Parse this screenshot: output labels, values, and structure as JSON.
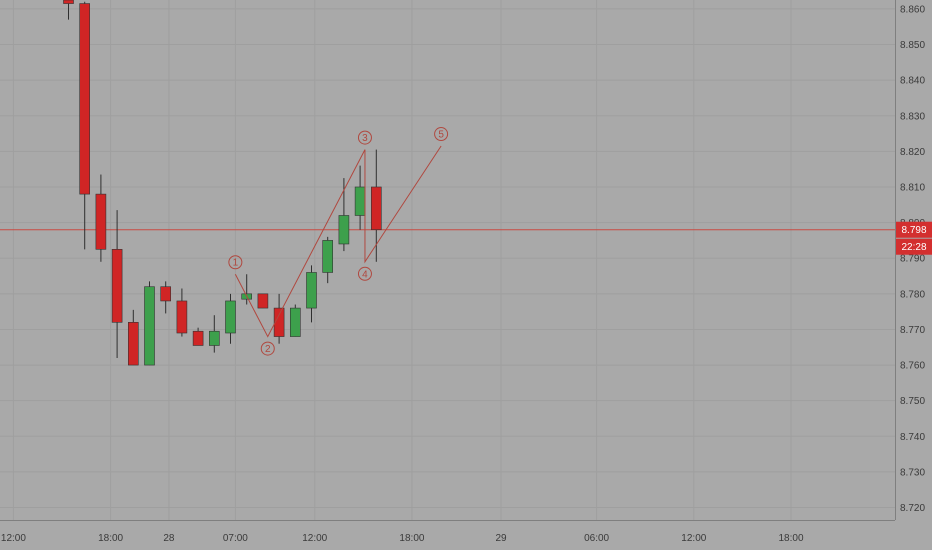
{
  "chart_data": {
    "type": "candlestick",
    "price_axis": {
      "ticks": [
        "8.860",
        "8.850",
        "8.840",
        "8.830",
        "8.820",
        "8.810",
        "8.800",
        "8.790",
        "8.780",
        "8.770",
        "8.760",
        "8.750",
        "8.740",
        "8.730",
        "8.720"
      ],
      "range": [
        8.7165,
        8.8625
      ]
    },
    "time_axis": {
      "labels": [
        "12:00",
        "18:00",
        "28",
        "07:00",
        "12:00",
        "18:00",
        "29",
        "06:00",
        "12:00",
        "18:00"
      ],
      "label_slots": [
        -3.4,
        2.6,
        6.2,
        10.3,
        15.2,
        21.2,
        26.7,
        32.6,
        38.6,
        44.6
      ]
    },
    "current_price": {
      "value": 8.798,
      "label": "8.798",
      "countdown": "22:28"
    },
    "candles": [
      {
        "o": 8.8625,
        "h": 8.8625,
        "l": 8.857,
        "c": 8.8615
      },
      {
        "o": 8.8615,
        "h": 8.862,
        "l": 8.7925,
        "c": 8.808
      },
      {
        "o": 8.808,
        "h": 8.8135,
        "l": 8.789,
        "c": 8.7925
      },
      {
        "o": 8.7925,
        "h": 8.8035,
        "l": 8.762,
        "c": 8.772
      },
      {
        "o": 8.772,
        "h": 8.7755,
        "l": 8.76,
        "c": 8.76
      },
      {
        "o": 8.76,
        "h": 8.7835,
        "l": 8.76,
        "c": 8.782
      },
      {
        "o": 8.782,
        "h": 8.7835,
        "l": 8.7745,
        "c": 8.778
      },
      {
        "o": 8.778,
        "h": 8.7815,
        "l": 8.768,
        "c": 8.769
      },
      {
        "o": 8.7695,
        "h": 8.7705,
        "l": 8.7655,
        "c": 8.7655
      },
      {
        "o": 8.7655,
        "h": 8.774,
        "l": 8.7635,
        "c": 8.7695
      },
      {
        "o": 8.769,
        "h": 8.78,
        "l": 8.766,
        "c": 8.778
      },
      {
        "o": 8.7785,
        "h": 8.7855,
        "l": 8.777,
        "c": 8.78
      },
      {
        "o": 8.78,
        "h": 8.78,
        "l": 8.776,
        "c": 8.776
      },
      {
        "o": 8.776,
        "h": 8.78,
        "l": 8.766,
        "c": 8.768
      },
      {
        "o": 8.768,
        "h": 8.777,
        "l": 8.768,
        "c": 8.776
      },
      {
        "o": 8.776,
        "h": 8.788,
        "l": 8.772,
        "c": 8.786
      },
      {
        "o": 8.786,
        "h": 8.796,
        "l": 8.783,
        "c": 8.795
      },
      {
        "o": 8.794,
        "h": 8.8125,
        "l": 8.792,
        "c": 8.802
      },
      {
        "o": 8.802,
        "h": 8.816,
        "l": 8.798,
        "c": 8.81
      },
      {
        "o": 8.81,
        "h": 8.8205,
        "l": 8.789,
        "c": 8.798
      }
    ],
    "wave_points": [
      {
        "label": "1",
        "slot": 10.3,
        "price": 8.7855
      },
      {
        "label": "2",
        "slot": 12.3,
        "price": 8.768
      },
      {
        "label": "3",
        "slot": 18.3,
        "price": 8.8205
      },
      {
        "label": "4",
        "slot": 18.3,
        "price": 8.789
      },
      {
        "label": "5",
        "slot": 23.0,
        "price": 8.8215
      }
    ],
    "wave_label_positions": [
      "above",
      "below",
      "above",
      "below",
      "above"
    ],
    "colors": {
      "background": "#a9a9a9",
      "grid": "#9f9f9f",
      "up": "#3da04c",
      "down": "#d02525",
      "wick": "#2f2f2f",
      "wave": "#b0483f",
      "price_line": "#c94a42",
      "badge": "#d32f2f"
    }
  }
}
